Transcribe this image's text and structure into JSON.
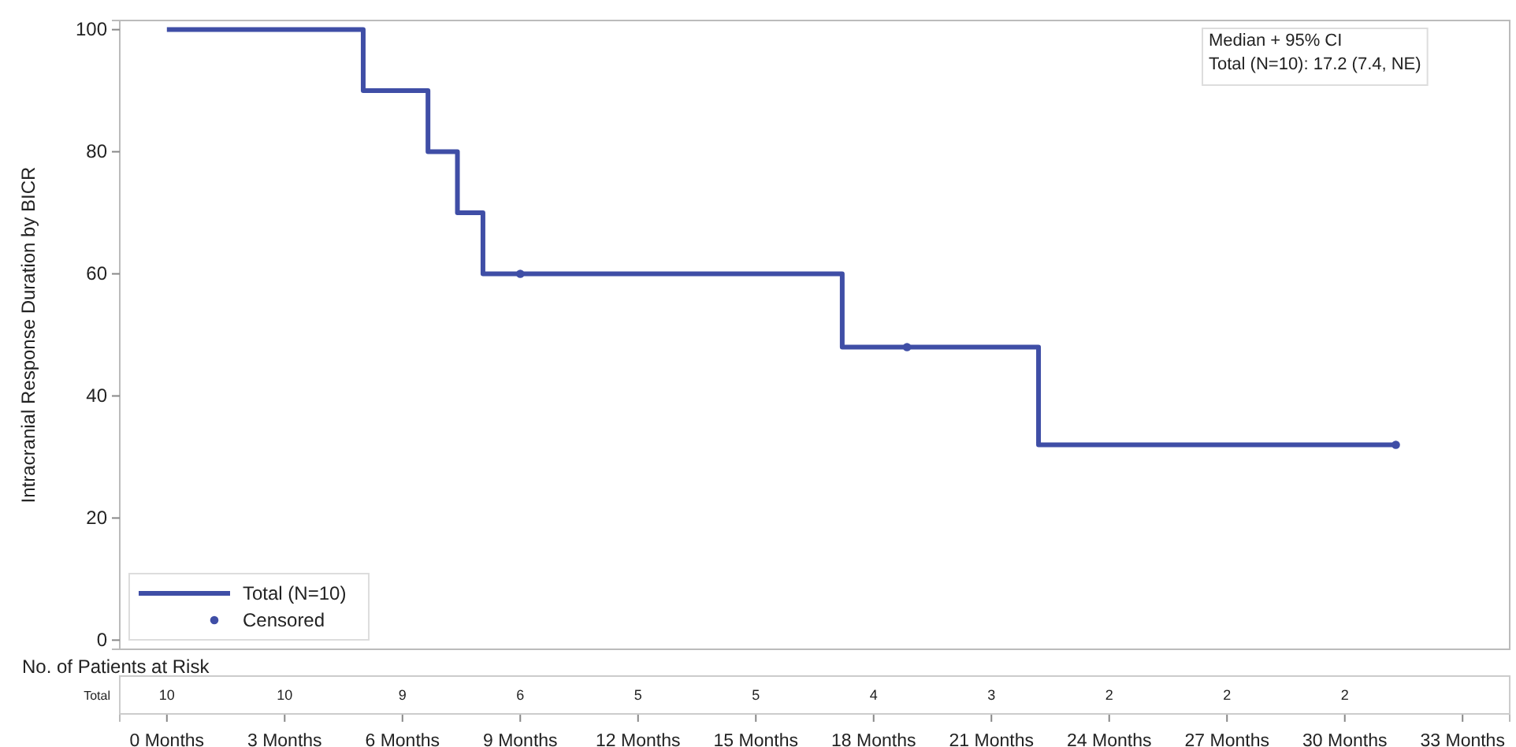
{
  "chart_data": {
    "type": "step",
    "ylabel": "Intracranial Response Duration by BICR",
    "xlim": [
      -1.2,
      34.2
    ],
    "ylim": [
      -1.5,
      101.5
    ],
    "xticks": [
      {
        "value": 0,
        "label": "0 Months"
      },
      {
        "value": 3,
        "label": "3 Months"
      },
      {
        "value": 6,
        "label": "6 Months"
      },
      {
        "value": 9,
        "label": "9 Months"
      },
      {
        "value": 12,
        "label": "12 Months"
      },
      {
        "value": 15,
        "label": "15 Months"
      },
      {
        "value": 18,
        "label": "18 Months"
      },
      {
        "value": 21,
        "label": "21 Months"
      },
      {
        "value": 24,
        "label": "24 Months"
      },
      {
        "value": 27,
        "label": "27 Months"
      },
      {
        "value": 30,
        "label": "30 Months"
      },
      {
        "value": 33,
        "label": "33 Months"
      }
    ],
    "yticks": [
      0,
      20,
      40,
      60,
      80,
      100
    ],
    "grid": false,
    "legend": "bottom left",
    "line_style": "solid",
    "series": [
      {
        "name": "Total (N=10)",
        "color": "#3f4ea6",
        "x": [
          0,
          5,
          6.65,
          7.4,
          8.05,
          17.2,
          22.2,
          31.3
        ],
        "values": [
          100,
          90,
          80,
          70,
          60,
          48,
          32,
          32
        ]
      },
      {
        "name": "Censored",
        "type": "scatter",
        "marker": "circle",
        "color": "#3f4ea6",
        "x": [
          9,
          18.85,
          31.3
        ],
        "values": [
          60,
          48,
          32
        ]
      }
    ],
    "annotations": [
      "Median + 95% CI",
      "Total (N=10): 17.2 (7.4, NE)",
      "No. of Patients at Risk",
      "Total",
      "10",
      "10",
      "9",
      "6",
      "5",
      "5",
      "4",
      "3",
      "2",
      "2",
      "2"
    ]
  }
}
